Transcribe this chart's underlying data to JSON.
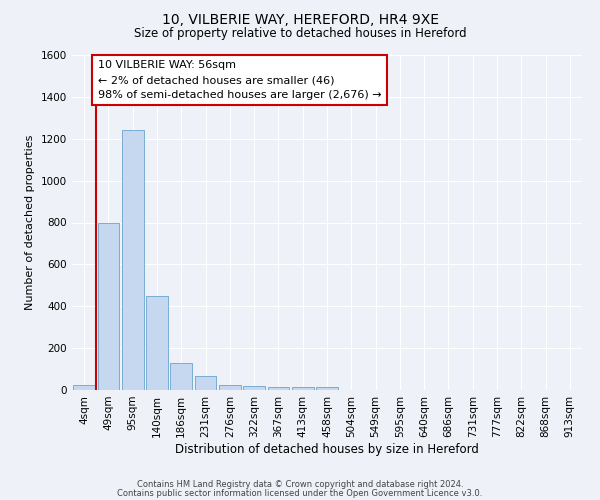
{
  "title1": "10, VILBERIE WAY, HEREFORD, HR4 9XE",
  "title2": "Size of property relative to detached houses in Hereford",
  "xlabel": "Distribution of detached houses by size in Hereford",
  "ylabel": "Number of detached properties",
  "bin_labels": [
    "4sqm",
    "49sqm",
    "95sqm",
    "140sqm",
    "186sqm",
    "231sqm",
    "276sqm",
    "322sqm",
    "367sqm",
    "413sqm",
    "458sqm",
    "504sqm",
    "549sqm",
    "595sqm",
    "640sqm",
    "686sqm",
    "731sqm",
    "777sqm",
    "822sqm",
    "868sqm",
    "913sqm"
  ],
  "bin_values": [
    25,
    800,
    1240,
    450,
    130,
    65,
    25,
    20,
    15,
    15,
    15,
    0,
    0,
    0,
    0,
    0,
    0,
    0,
    0,
    0,
    0
  ],
  "bar_color": "#c5d8f0",
  "bar_edge_color": "#7aadd4",
  "vline_x": 0.5,
  "vline_color": "#cc0000",
  "annotation_text": "10 VILBERIE WAY: 56sqm\n← 2% of detached houses are smaller (46)\n98% of semi-detached houses are larger (2,676) →",
  "annotation_box_color": "#ffffff",
  "annotation_box_edge": "#cc0000",
  "ylim": [
    0,
    1600
  ],
  "yticks": [
    0,
    200,
    400,
    600,
    800,
    1000,
    1200,
    1400,
    1600
  ],
  "bg_color": "#eef2f8",
  "footer1": "Contains HM Land Registry data © Crown copyright and database right 2024.",
  "footer2": "Contains public sector information licensed under the Open Government Licence v3.0."
}
